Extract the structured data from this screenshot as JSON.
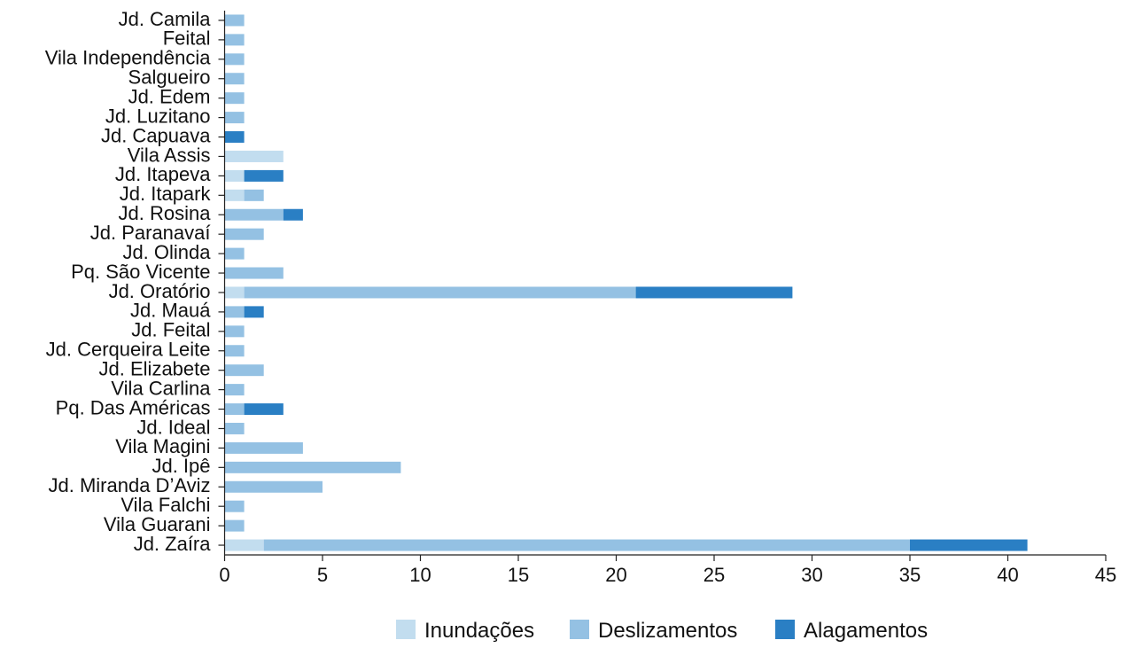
{
  "chart_data": {
    "type": "bar",
    "orientation": "horizontal",
    "stacked": true,
    "categories": [
      "Jd. Camila",
      "Feital",
      "Vila Independência",
      "Salgueiro",
      "Jd. Edem",
      "Jd. Luzitano",
      "Jd. Capuava",
      "Vila Assis",
      "Jd. Itapeva",
      "Jd. Itapark",
      "Jd. Rosina",
      "Jd. Paranavaí",
      "Jd. Olinda",
      "Pq. São Vicente",
      "Jd. Oratório",
      "Jd. Mauá",
      "Jd. Feital",
      "Jd. Cerqueira Leite",
      "Jd. Elizabete",
      "Vila Carlina",
      "Pq. Das Américas",
      "Jd. Ideal",
      "Vila Magini",
      "Jd. Ipê",
      "Jd. Miranda D’Aviz",
      "Vila Falchi",
      "Vila Guarani",
      "Jd. Zaíra"
    ],
    "series": [
      {
        "name": "Inundações",
        "color": "#c2ddef",
        "values": [
          0,
          0,
          0,
          0,
          0,
          0,
          0,
          3,
          1,
          1,
          0,
          0,
          0,
          0,
          1,
          0,
          0,
          0,
          0,
          0,
          0,
          0,
          0,
          0,
          0,
          0,
          0,
          2
        ]
      },
      {
        "name": "Deslizamentos",
        "color": "#94c1e3",
        "values": [
          1,
          1,
          1,
          1,
          1,
          1,
          0,
          0,
          0,
          1,
          3,
          2,
          1,
          3,
          20,
          1,
          1,
          1,
          2,
          1,
          1,
          1,
          4,
          9,
          5,
          1,
          1,
          33
        ]
      },
      {
        "name": "Alagamentos",
        "color": "#2a7fc4",
        "values": [
          0,
          0,
          0,
          0,
          0,
          0,
          1,
          0,
          2,
          0,
          1,
          0,
          0,
          0,
          8,
          1,
          0,
          0,
          0,
          0,
          2,
          0,
          0,
          0,
          0,
          0,
          0,
          6
        ]
      }
    ],
    "xlim": [
      0,
      45
    ],
    "xticks": [
      "0",
      "5",
      "10",
      "15",
      "20",
      "25",
      "30",
      "35",
      "40",
      "45"
    ],
    "legend_position": "bottom",
    "grid": false
  }
}
